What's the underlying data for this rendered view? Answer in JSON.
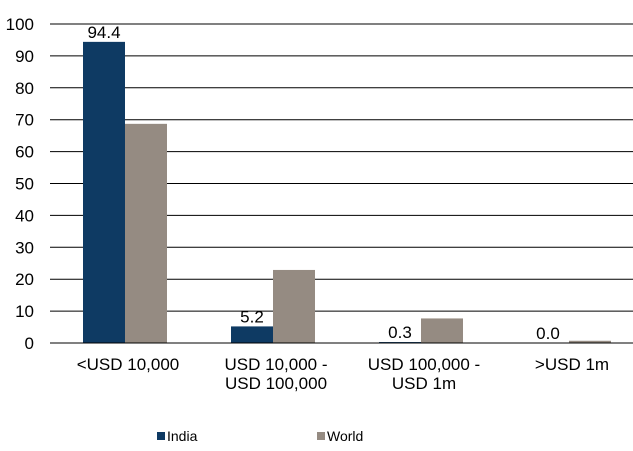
{
  "chart_data": {
    "type": "bar",
    "title": "",
    "xlabel": "",
    "ylabel": "",
    "ylim": [
      0,
      100
    ],
    "yticks": [
      0,
      10,
      20,
      30,
      40,
      50,
      60,
      70,
      80,
      90,
      100
    ],
    "grid": true,
    "legend_position": "bottom",
    "categories": [
      [
        "<USD 10,000"
      ],
      [
        "USD 10,000 -",
        "USD 100,000"
      ],
      [
        "USD 100,000 -",
        "USD 1m"
      ],
      [
        ">USD 1m"
      ]
    ],
    "series": [
      {
        "name": "India",
        "color": "#0e3a63",
        "values": [
          94.4,
          5.2,
          0.3,
          0.0
        ],
        "labels": [
          "94.4",
          "5.2",
          "0.3",
          "0.0"
        ]
      },
      {
        "name": "World",
        "color": "#958b82",
        "values": [
          68.7,
          22.9,
          7.7,
          0.7
        ]
      }
    ]
  }
}
